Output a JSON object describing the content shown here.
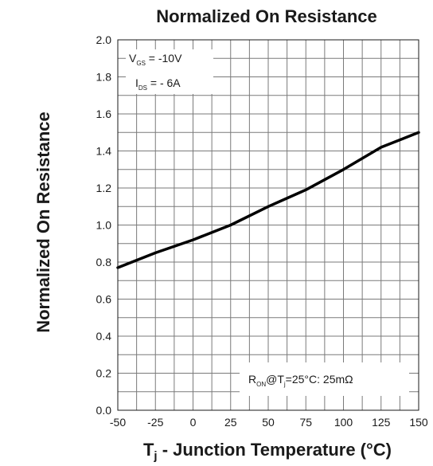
{
  "chart_data": {
    "type": "line",
    "title": "Normalized On Resistance",
    "ylabel": "Normalized On Resistance",
    "xlabel": {
      "main": "T",
      "sub": "j",
      "rest": " - Junction Temperature (°C)"
    },
    "xlim": [
      -50,
      150
    ],
    "ylim": [
      0.0,
      2.0
    ],
    "x_ticks": [
      "-50",
      "-25",
      "0",
      "25",
      "50",
      "75",
      "100",
      "125",
      "150"
    ],
    "y_ticks": [
      "0.0",
      "0.2",
      "0.4",
      "0.6",
      "0.8",
      "1.0",
      "1.2",
      "1.4",
      "1.6",
      "1.8",
      "2.0"
    ],
    "x_minor_step": 12.5,
    "y_minor_step": 0.1,
    "grid": true,
    "series": [
      {
        "x": [
          -50,
          -25,
          0,
          25,
          50,
          75,
          100,
          125,
          150
        ],
        "y": [
          0.77,
          0.85,
          0.92,
          1.0,
          1.1,
          1.19,
          1.3,
          1.42,
          1.5
        ],
        "color": "#000000"
      }
    ],
    "conditions": {
      "vgs": {
        "main": "V",
        "sub": "GS",
        "rest": " = -10V"
      },
      "ids": {
        "main": "I",
        "sub": "DS",
        "rest": " = - 6A"
      }
    },
    "reference": {
      "r": "R",
      "r_sub": "ON",
      "at": "@T",
      "t_sub": "j",
      "rest": "=25°C: 25mΩ"
    }
  }
}
